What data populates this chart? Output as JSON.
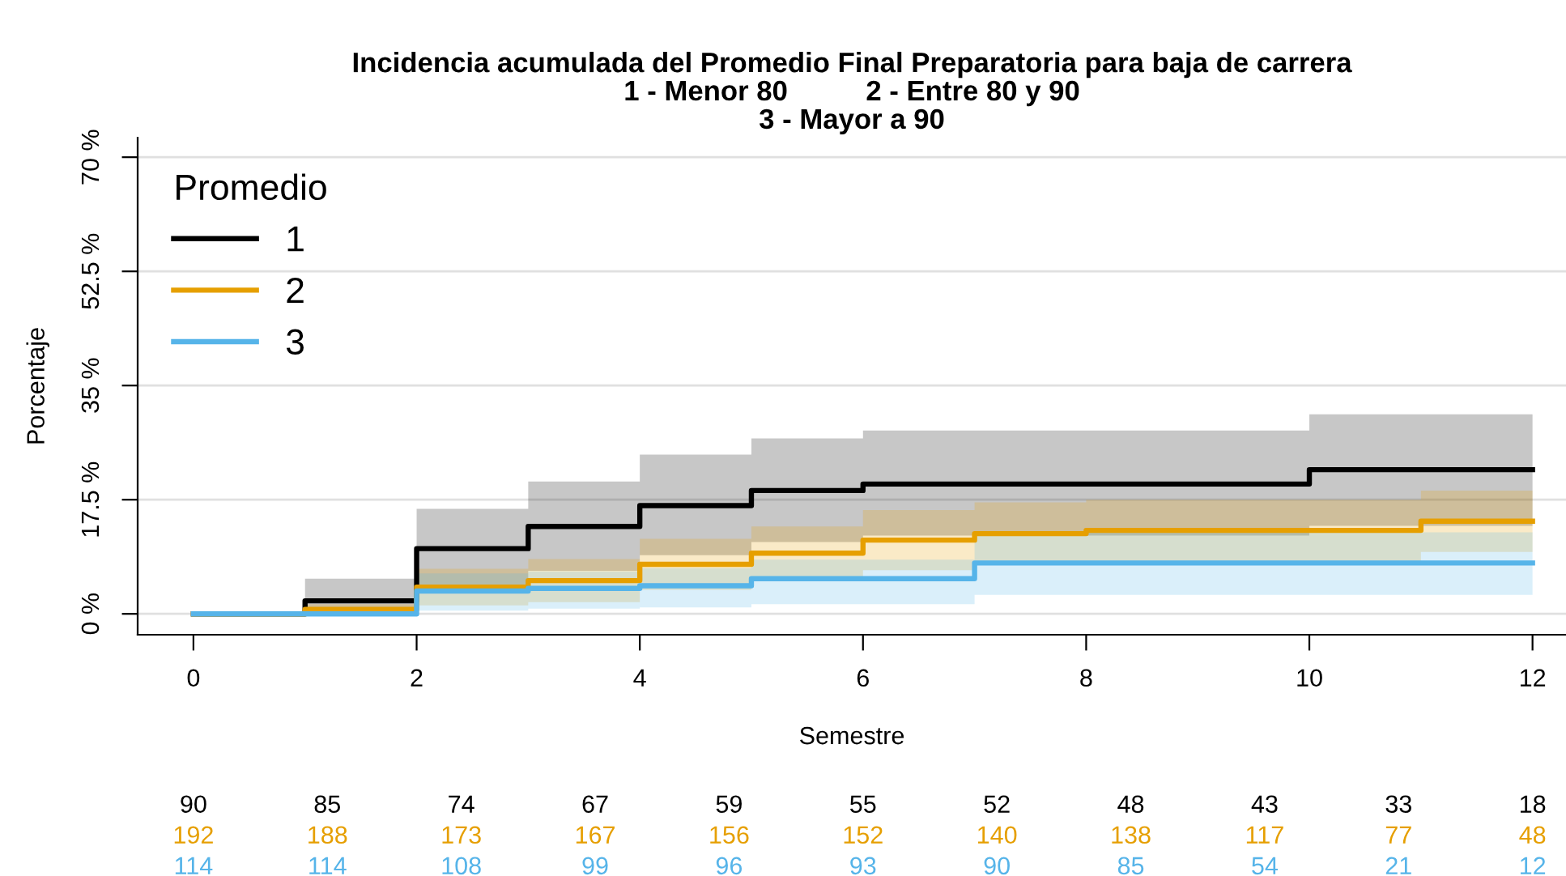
{
  "chart_data": {
    "type": "step",
    "title": "Incidencia acumulada del Promedio Final Preparatoria para baja de carrera\n1 - Menor 80          2 - Entre 80 y 90\n3 - Mayor a 90",
    "xlabel": "Semestre",
    "ylabel": "Porcentaje",
    "legend_title": "Promedio",
    "legend": "top left",
    "grid": "y",
    "x": [
      0,
      1,
      2,
      3,
      4,
      5,
      6,
      7,
      8,
      9,
      10,
      11,
      12
    ],
    "xlim": [
      -0.5,
      12.3
    ],
    "xticks": [
      0,
      2,
      4,
      6,
      8,
      10,
      12
    ],
    "ylim": [
      -3.2,
      73
    ],
    "yticks": [
      {
        "value": 0,
        "label": "0 %"
      },
      {
        "value": 17.5,
        "label": "17.5 %"
      },
      {
        "value": 35,
        "label": "35 %"
      },
      {
        "value": 52.5,
        "label": "52.5 %"
      },
      {
        "value": 70,
        "label": "70 %"
      }
    ],
    "series": [
      {
        "name": "1",
        "color": "#000000",
        "values": [
          0,
          2,
          10,
          13.4,
          16.6,
          18.9,
          19.9,
          19.9,
          19.9,
          19.9,
          22.1,
          22.1,
          22.1
        ],
        "lower": [
          0,
          0,
          4.5,
          6.6,
          9,
          11,
          12,
          12,
          12,
          12,
          13.5,
          13.5,
          13.5
        ],
        "upper": [
          0,
          5.4,
          16.1,
          20.3,
          24.4,
          26.9,
          28.1,
          28.1,
          28.1,
          28.1,
          30.6,
          30.6,
          30.6
        ]
      },
      {
        "name": "2",
        "color": "#e69f00",
        "values": [
          0,
          0.7,
          4.1,
          5.1,
          7.6,
          9.3,
          11.3,
          12.3,
          12.8,
          12.8,
          12.8,
          14.2,
          14.2
        ],
        "lower": [
          0,
          0,
          1.3,
          1.8,
          3.7,
          5.2,
          6.7,
          7.5,
          8.1,
          8.1,
          8.1,
          9.5,
          9.5
        ],
        "upper": [
          0,
          1.5,
          6.9,
          8.4,
          11.5,
          13.4,
          15.9,
          17.1,
          17.5,
          17.5,
          17.5,
          18.9,
          18.9
        ]
      },
      {
        "name": "3",
        "color": "#56b4e9",
        "values": [
          0,
          0,
          3.5,
          3.9,
          4.3,
          5.4,
          5.4,
          7.8,
          7.8,
          7.8,
          7.8,
          7.8,
          7.8
        ],
        "lower": [
          0,
          0,
          0.5,
          0.8,
          1,
          1.5,
          1.5,
          2.9,
          2.9,
          2.9,
          2.9,
          2.9,
          2.9
        ],
        "upper": [
          0,
          0,
          6.2,
          6.5,
          7,
          8.3,
          8.3,
          12.5,
          12.5,
          12.5,
          12.5,
          12.5,
          12.5
        ]
      }
    ],
    "annotations": [
      "90",
      "85",
      "74",
      "67",
      "59",
      "55",
      "52",
      "48",
      "43",
      "33",
      "18",
      "192",
      "188",
      "173",
      "167",
      "156",
      "152",
      "140",
      "138",
      "117",
      "77",
      "48",
      "114",
      "114",
      "108",
      "99",
      "96",
      "93",
      "90",
      "85",
      "54",
      "21",
      "12"
    ]
  }
}
